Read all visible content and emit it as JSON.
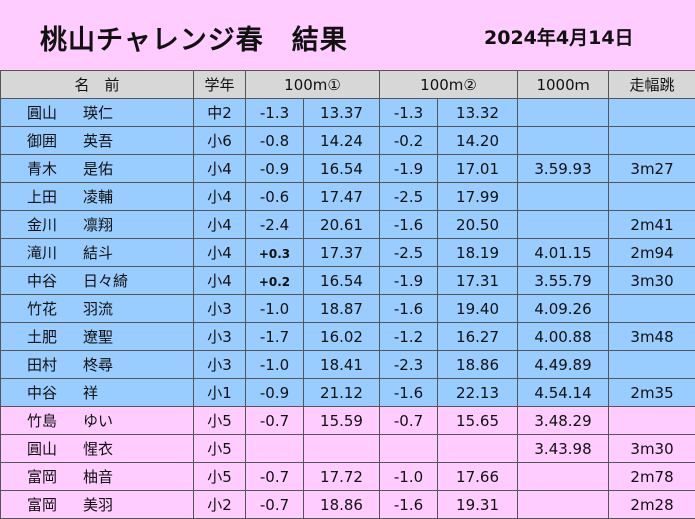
{
  "header": {
    "title": "桃山チャレンジ春　結果",
    "date": "2024年4月14日"
  },
  "columns": {
    "name": "名　前",
    "grade": "学年",
    "run1": "100m①",
    "run2": "100m②",
    "k1000": "1000ｍ",
    "longjump": "走幅跳"
  },
  "rows": [
    {
      "family": "圓山",
      "given": "瑛仁",
      "grade": "中2",
      "wind1": "-1.3",
      "time1": "13.37",
      "wind2": "-1.3",
      "time2": "13.32",
      "k1000": "",
      "lj": "",
      "color": "blue"
    },
    {
      "family": "御囲",
      "given": "英吾",
      "grade": "小6",
      "wind1": "-0.8",
      "time1": "14.24",
      "wind2": "-0.2",
      "time2": "14.20",
      "k1000": "",
      "lj": "",
      "color": "blue"
    },
    {
      "family": "青木",
      "given": "是佑",
      "grade": "小4",
      "wind1": "-0.9",
      "time1": "16.54",
      "wind2": "-1.9",
      "time2": "17.01",
      "k1000": "3.59.93",
      "lj": "3m27",
      "color": "blue"
    },
    {
      "family": "上田",
      "given": "凌輔",
      "grade": "小4",
      "wind1": "-0.6",
      "time1": "17.47",
      "wind2": "-2.5",
      "time2": "17.99",
      "k1000": "",
      "lj": "",
      "color": "blue"
    },
    {
      "family": "金川",
      "given": "凛翔",
      "grade": "小4",
      "wind1": "-2.4",
      "time1": "20.61",
      "wind2": "-1.6",
      "time2": "20.50",
      "k1000": "",
      "lj": "2m41",
      "color": "blue"
    },
    {
      "family": "滝川",
      "given": "結斗",
      "grade": "小4",
      "wind1": "+0.3",
      "time1": "17.37",
      "wind2": "-2.5",
      "time2": "18.19",
      "k1000": "4.01.15",
      "lj": "2m94",
      "color": "blue"
    },
    {
      "family": "中谷",
      "given": "日々綺",
      "grade": "小4",
      "wind1": "+0.2",
      "time1": "16.54",
      "wind2": "-1.9",
      "time2": "17.31",
      "k1000": "3.55.79",
      "lj": "3m30",
      "color": "blue"
    },
    {
      "family": "竹花",
      "given": "羽流",
      "grade": "小3",
      "wind1": "-1.0",
      "time1": "18.87",
      "wind2": "-1.6",
      "time2": "19.40",
      "k1000": "4.09.26",
      "lj": "",
      "color": "blue"
    },
    {
      "family": "土肥",
      "given": "遼聖",
      "grade": "小3",
      "wind1": "-1.7",
      "time1": "16.02",
      "wind2": "-1.2",
      "time2": "16.27",
      "k1000": "4.00.88",
      "lj": "3m48",
      "color": "blue"
    },
    {
      "family": "田村",
      "given": "柊尋",
      "grade": "小3",
      "wind1": "-1.0",
      "time1": "18.41",
      "wind2": "-2.3",
      "time2": "18.86",
      "k1000": "4.49.89",
      "lj": "",
      "color": "blue"
    },
    {
      "family": "中谷",
      "given": "祥",
      "grade": "小1",
      "wind1": "-0.9",
      "time1": "21.12",
      "wind2": "-1.6",
      "time2": "22.13",
      "k1000": "4.54.14",
      "lj": "2m35",
      "color": "blue"
    },
    {
      "family": "竹島",
      "given": "ゆい",
      "grade": "小5",
      "wind1": "-0.7",
      "time1": "15.59",
      "wind2": "-0.7",
      "time2": "15.65",
      "k1000": "3.48.29",
      "lj": "",
      "color": "pink"
    },
    {
      "family": "圓山",
      "given": "惺衣",
      "grade": "小5",
      "wind1": "",
      "time1": "",
      "wind2": "",
      "time2": "",
      "k1000": "3.43.98",
      "lj": "3m30",
      "color": "pink"
    },
    {
      "family": "富岡",
      "given": "柚音",
      "grade": "小5",
      "wind1": "-0.7",
      "time1": "17.72",
      "wind2": "-1.0",
      "time2": "17.66",
      "k1000": "",
      "lj": "2m78",
      "color": "pink"
    },
    {
      "family": "富岡",
      "given": "美羽",
      "grade": "小2",
      "wind1": "-0.7",
      "time1": "18.86",
      "wind2": "-1.6",
      "time2": "19.31",
      "k1000": "",
      "lj": "2m28",
      "color": "pink"
    }
  ]
}
